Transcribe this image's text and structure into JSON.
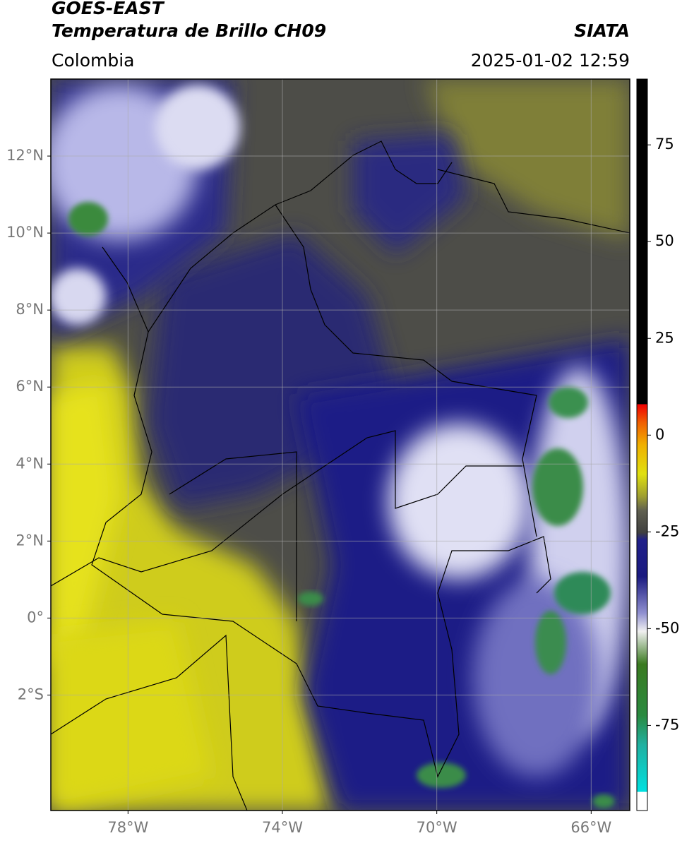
{
  "header": {
    "satellite": "GOES-EAST",
    "product": "Temperatura de Brillo CH09",
    "source": "SIATA",
    "region": "Colombia",
    "datetime": "2025-01-02 12:59"
  },
  "map": {
    "xlim": [
      -80,
      -65
    ],
    "ylim": [
      -5,
      14
    ],
    "xticks": [
      {
        "value": -78,
        "label": "78°W"
      },
      {
        "value": -74,
        "label": "74°W"
      },
      {
        "value": -70,
        "label": "70°W"
      },
      {
        "value": -66,
        "label": "66°W"
      }
    ],
    "yticks": [
      {
        "value": 12,
        "label": "12°N"
      },
      {
        "value": 10,
        "label": "10°N"
      },
      {
        "value": 8,
        "label": "8°N"
      },
      {
        "value": 6,
        "label": "6°N"
      },
      {
        "value": 4,
        "label": "4°N"
      },
      {
        "value": 2,
        "label": "2°N"
      },
      {
        "value": 0,
        "label": "0°"
      },
      {
        "value": -2,
        "label": "2°S"
      }
    ],
    "grid": true
  },
  "colorbar": {
    "lim": [
      -97,
      92
    ],
    "ticks": [
      75,
      50,
      25,
      0,
      -25,
      -50,
      -75
    ]
  }
}
